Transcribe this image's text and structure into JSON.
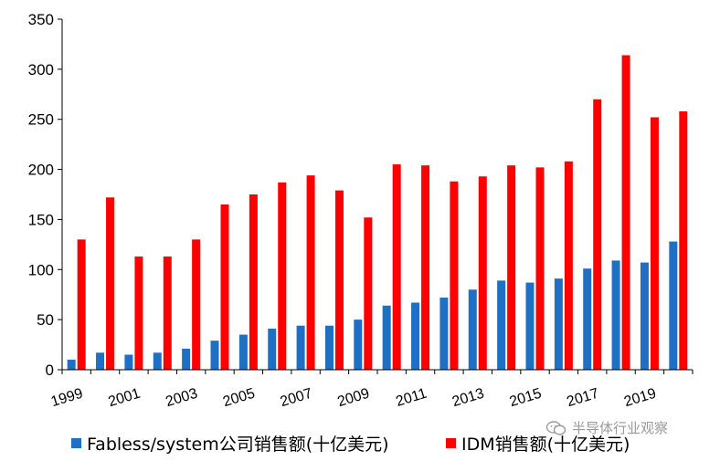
{
  "chart_data": {
    "type": "bar",
    "categories": [
      "1999",
      "2000",
      "2001",
      "2002",
      "2003",
      "2004",
      "2005",
      "2006",
      "2007",
      "2008",
      "2009",
      "2010",
      "2011",
      "2012",
      "2013",
      "2014",
      "2015",
      "2016",
      "2017",
      "2018",
      "2019",
      "2020"
    ],
    "x_tick_labels": [
      "1999",
      "2001",
      "2003",
      "2005",
      "2007",
      "2009",
      "2011",
      "2013",
      "2015",
      "2017",
      "2019"
    ],
    "series": [
      {
        "name": "Fabless/system公司销售额(十亿美元)",
        "color": "#1f6fc5",
        "values": [
          10,
          17,
          15,
          17,
          21,
          29,
          35,
          41,
          44,
          44,
          50,
          64,
          67,
          72,
          80,
          89,
          87,
          91,
          101,
          109,
          107,
          128
        ]
      },
      {
        "name": "IDM销售额(十亿美元)",
        "color": "#ff0000",
        "values": [
          130,
          172,
          113,
          113,
          130,
          165,
          175,
          187,
          194,
          179,
          152,
          205,
          204,
          188,
          193,
          204,
          202,
          208,
          270,
          314,
          252,
          258
        ]
      }
    ],
    "ylim": [
      0,
      350
    ],
    "yticks": [
      0,
      50,
      100,
      150,
      200,
      250,
      300,
      350
    ],
    "grid": false,
    "legend": "bottom",
    "title": "",
    "xlabel": "",
    "ylabel": ""
  },
  "watermark": {
    "text": "半导体行业观察",
    "icon": "wechat-icon"
  }
}
